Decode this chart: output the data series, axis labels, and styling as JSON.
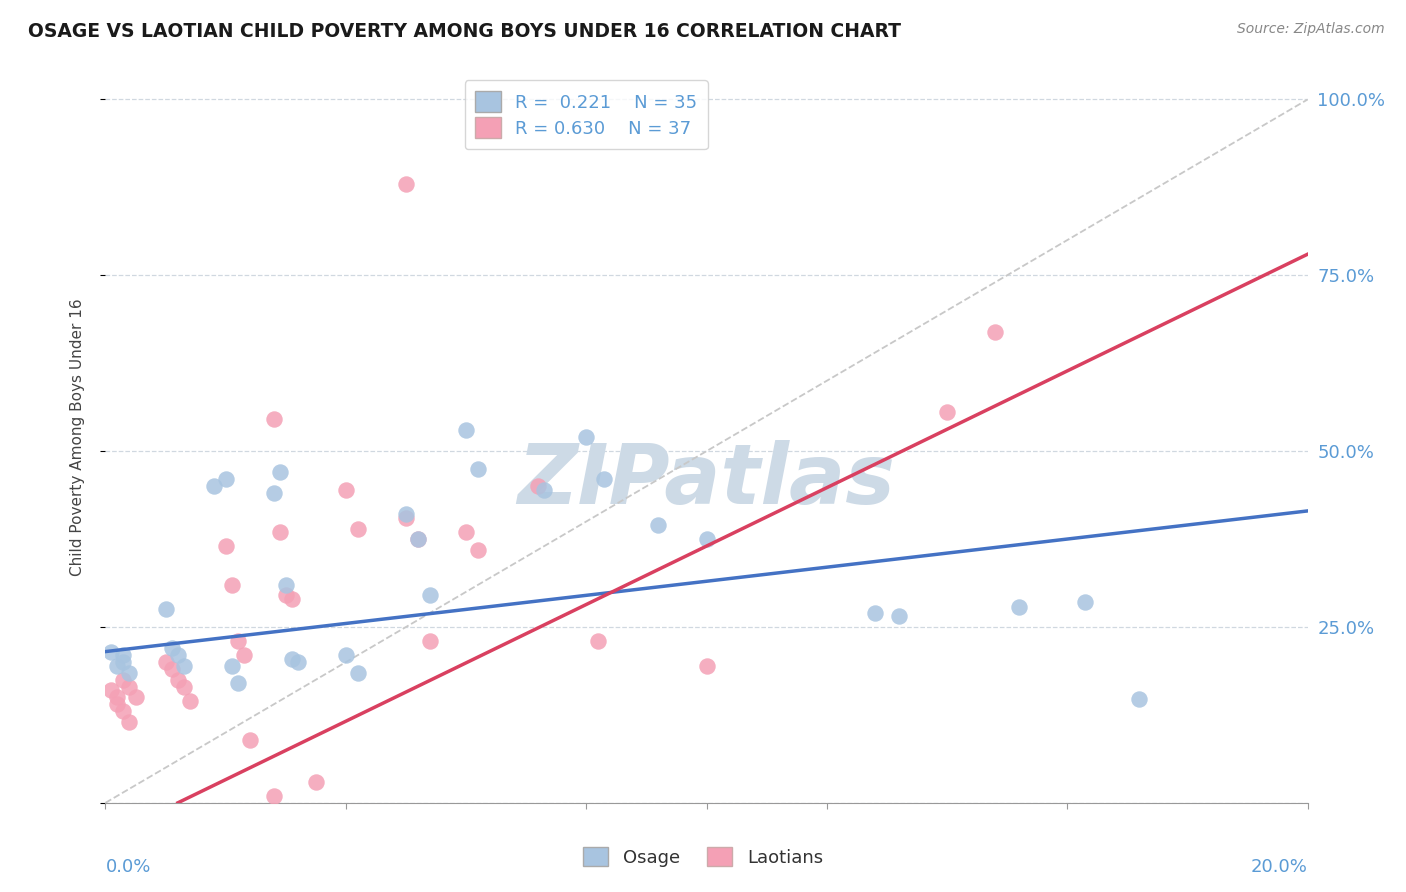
{
  "title": "OSAGE VS LAOTIAN CHILD POVERTY AMONG BOYS UNDER 16 CORRELATION CHART",
  "source": "Source: ZipAtlas.com",
  "ylabel": "Child Poverty Among Boys Under 16",
  "xmin": 0.0,
  "xmax": 0.2,
  "ymin": 0.0,
  "ymax": 1.04,
  "ytick_vals": [
    0.0,
    0.25,
    0.5,
    0.75,
    1.0
  ],
  "ytick_labels": [
    "",
    "25.0%",
    "50.0%",
    "75.0%",
    "100.0%"
  ],
  "legend_r_osage": "R =  0.221",
  "legend_n_osage": "N = 35",
  "legend_r_laotian": "R = 0.630",
  "legend_n_laotian": "N = 37",
  "osage_color": "#a8c4e0",
  "laotian_color": "#f4a0b5",
  "osage_line_color": "#4472c4",
  "laotian_line_color": "#d94060",
  "ref_line_color": "#c8c8c8",
  "watermark_color": "#cddae6",
  "grid_color": "#d0d8e0",
  "axis_label_color": "#5b9bd5",
  "background_color": "#ffffff",
  "osage_scatter": [
    [
      0.001,
      0.215
    ],
    [
      0.002,
      0.195
    ],
    [
      0.003,
      0.21
    ],
    [
      0.003,
      0.2
    ],
    [
      0.004,
      0.185
    ],
    [
      0.01,
      0.275
    ],
    [
      0.011,
      0.22
    ],
    [
      0.012,
      0.21
    ],
    [
      0.013,
      0.195
    ],
    [
      0.018,
      0.45
    ],
    [
      0.02,
      0.46
    ],
    [
      0.021,
      0.195
    ],
    [
      0.022,
      0.17
    ],
    [
      0.028,
      0.44
    ],
    [
      0.029,
      0.47
    ],
    [
      0.03,
      0.31
    ],
    [
      0.031,
      0.205
    ],
    [
      0.032,
      0.2
    ],
    [
      0.04,
      0.21
    ],
    [
      0.042,
      0.185
    ],
    [
      0.05,
      0.41
    ],
    [
      0.052,
      0.375
    ],
    [
      0.054,
      0.295
    ],
    [
      0.06,
      0.53
    ],
    [
      0.062,
      0.475
    ],
    [
      0.073,
      0.445
    ],
    [
      0.08,
      0.52
    ],
    [
      0.083,
      0.46
    ],
    [
      0.092,
      0.395
    ],
    [
      0.1,
      0.375
    ],
    [
      0.128,
      0.27
    ],
    [
      0.132,
      0.265
    ],
    [
      0.152,
      0.278
    ],
    [
      0.163,
      0.285
    ],
    [
      0.172,
      0.148
    ]
  ],
  "laotian_scatter": [
    [
      0.001,
      0.16
    ],
    [
      0.002,
      0.15
    ],
    [
      0.002,
      0.14
    ],
    [
      0.003,
      0.13
    ],
    [
      0.004,
      0.115
    ],
    [
      0.003,
      0.175
    ],
    [
      0.004,
      0.165
    ],
    [
      0.005,
      0.15
    ],
    [
      0.01,
      0.2
    ],
    [
      0.011,
      0.19
    ],
    [
      0.012,
      0.175
    ],
    [
      0.013,
      0.165
    ],
    [
      0.014,
      0.145
    ],
    [
      0.02,
      0.365
    ],
    [
      0.021,
      0.31
    ],
    [
      0.022,
      0.23
    ],
    [
      0.023,
      0.21
    ],
    [
      0.024,
      0.09
    ],
    [
      0.028,
      0.545
    ],
    [
      0.029,
      0.385
    ],
    [
      0.03,
      0.295
    ],
    [
      0.031,
      0.29
    ],
    [
      0.035,
      0.03
    ],
    [
      0.04,
      0.445
    ],
    [
      0.042,
      0.39
    ],
    [
      0.05,
      0.405
    ],
    [
      0.052,
      0.375
    ],
    [
      0.054,
      0.23
    ],
    [
      0.06,
      0.385
    ],
    [
      0.062,
      0.36
    ],
    [
      0.072,
      0.45
    ],
    [
      0.082,
      0.23
    ],
    [
      0.05,
      0.88
    ],
    [
      0.1,
      0.195
    ],
    [
      0.028,
      0.01
    ],
    [
      0.14,
      0.555
    ],
    [
      0.148,
      0.67
    ]
  ],
  "osage_trend": [
    0.0,
    0.215,
    0.2,
    0.415
  ],
  "laotian_trend": [
    0.0,
    -0.05,
    0.2,
    0.78
  ],
  "ref_diagonal": [
    0.0,
    0.0,
    0.2,
    1.0
  ]
}
